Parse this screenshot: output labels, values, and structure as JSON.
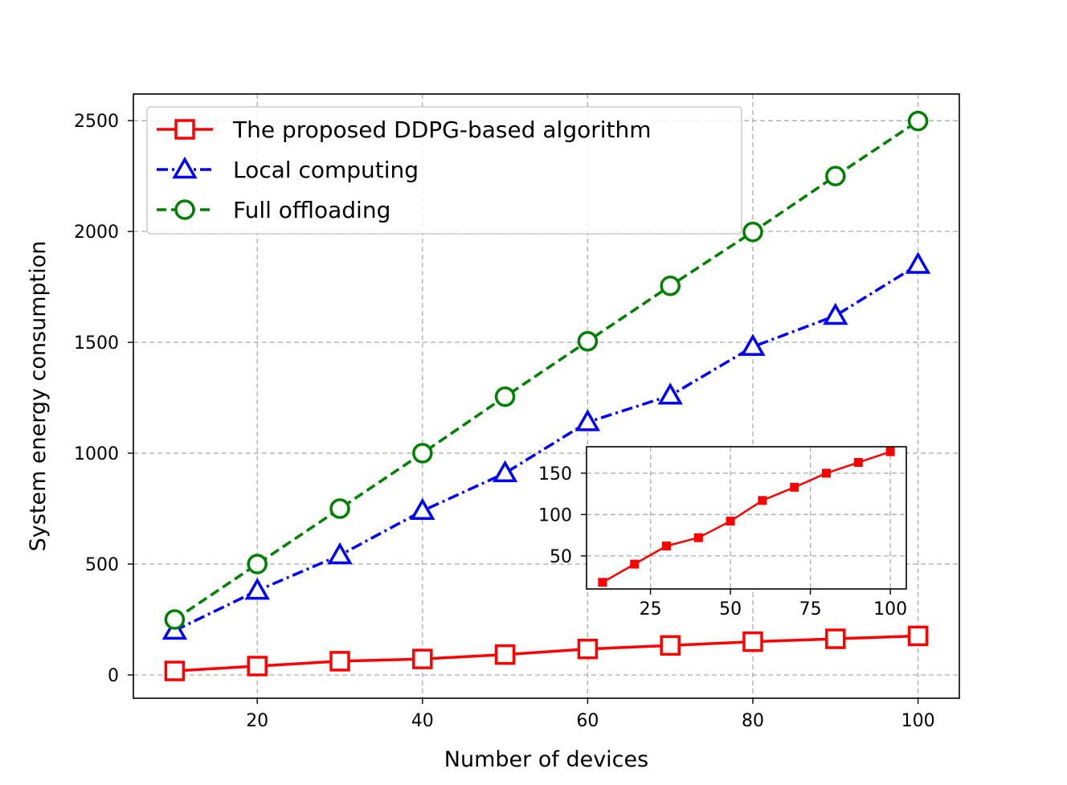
{
  "chart_data": [
    {
      "type": "line",
      "xlabel": "Number of devices",
      "ylabel": "System energy consumption",
      "xlim": [
        5,
        105
      ],
      "ylim": [
        -105,
        2620
      ],
      "x_ticks": [
        20,
        40,
        60,
        80,
        100
      ],
      "y_ticks": [
        0,
        500,
        1000,
        1500,
        2000,
        2500
      ],
      "grid": true,
      "legend_position": "top-left",
      "x": [
        10,
        20,
        30,
        40,
        50,
        60,
        70,
        80,
        90,
        100
      ],
      "series": [
        {
          "name": "The proposed DDPG-based algorithm",
          "color": "#ff0000",
          "marker": "square",
          "linestyle": "solid",
          "values": [
            18,
            40,
            62,
            72,
            92,
            117,
            133,
            150,
            163,
            176
          ]
        },
        {
          "name": "Local computing",
          "color": "#0000ff",
          "marker": "triangle",
          "linestyle": "dashdot",
          "values": [
            200,
            380,
            540,
            740,
            910,
            1140,
            1260,
            1480,
            1620,
            1850
          ]
        },
        {
          "name": "Full offloading",
          "color": "#008000",
          "marker": "circle",
          "linestyle": "dashed",
          "values": [
            250,
            500,
            750,
            1000,
            1255,
            1505,
            1755,
            1998,
            2250,
            2498
          ]
        }
      ]
    },
    {
      "type": "line",
      "inset": true,
      "xlim": [
        5,
        105
      ],
      "ylim": [
        10,
        182
      ],
      "x_ticks": [
        25,
        50,
        75,
        100
      ],
      "y_ticks": [
        50,
        100,
        150
      ],
      "grid": true,
      "x": [
        10,
        20,
        30,
        40,
        50,
        60,
        70,
        80,
        90,
        100
      ],
      "series": [
        {
          "color": "#ff0000",
          "marker": "filled-square",
          "linestyle": "solid",
          "values": [
            18,
            40,
            62,
            72,
            92,
            117,
            133,
            150,
            163,
            176
          ]
        }
      ]
    }
  ]
}
